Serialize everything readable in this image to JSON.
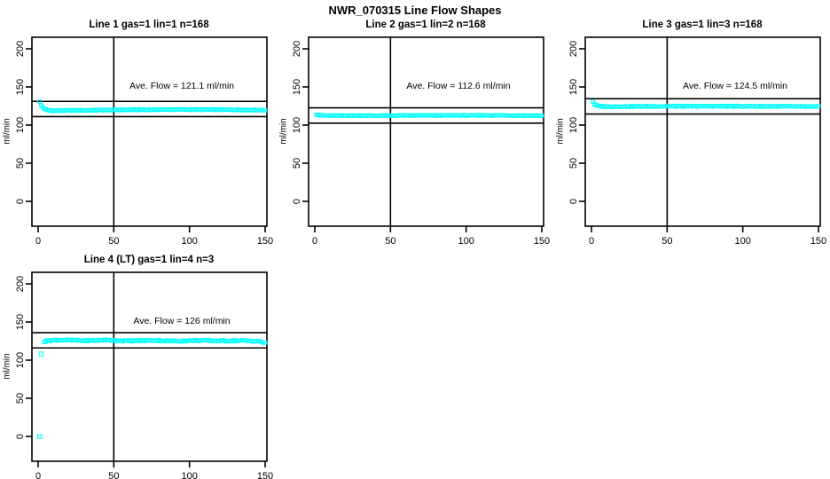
{
  "title": "NWR_070315  Line Flow Shapes",
  "colors": {
    "background": "#FFFFFF",
    "foreground": "#000000",
    "marker": "#00FFFF"
  },
  "chart_data": [
    {
      "type": "scatter",
      "title": "Line 1 gas=1 lin=1 n=168",
      "ylabel": "ml/min",
      "xlabel": "",
      "annotation": "Ave. Flow =  121.1   ml/min",
      "ave_flow_ml_min": 121.1,
      "n": 168,
      "gas": 1,
      "lin": 1,
      "xlim": [
        0,
        150
      ],
      "ylim": [
        0,
        200
      ],
      "x_ticks": [
        0,
        50,
        100,
        150
      ],
      "y_ticks": [
        0,
        50,
        100,
        150,
        200
      ],
      "vline_x": 50,
      "hlines": [
        131.1,
        111.1
      ],
      "marker": "open-square",
      "series": {
        "x_start": 1,
        "x_end": 150,
        "x_step": 1,
        "noise": 0.55,
        "profile": [
          [
            1,
            130.5
          ],
          [
            2,
            126.0
          ],
          [
            3,
            123.5
          ],
          [
            4,
            121.5
          ],
          [
            6,
            119.5
          ],
          [
            10,
            118.8
          ],
          [
            20,
            119.2
          ],
          [
            50,
            119.8
          ],
          [
            90,
            120.4
          ],
          [
            120,
            120.2
          ],
          [
            150,
            119.6
          ]
        ]
      },
      "outliers": []
    },
    {
      "type": "scatter",
      "title": "Line 2 gas=1 lin=2 n=168",
      "ylabel": "ml/min",
      "xlabel": "",
      "annotation": "Ave. Flow =  112.6  ml/min",
      "ave_flow_ml_min": 112.6,
      "n": 168,
      "gas": 1,
      "lin": 2,
      "xlim": [
        0,
        150
      ],
      "ylim": [
        0,
        200
      ],
      "x_ticks": [
        0,
        50,
        100,
        150
      ],
      "y_ticks": [
        0,
        50,
        100,
        150,
        200
      ],
      "vline_x": 50,
      "hlines": [
        122.6,
        102.6
      ],
      "marker": "open-square",
      "series": {
        "x_start": 1,
        "x_end": 150,
        "x_step": 1,
        "noise": 0.45,
        "profile": [
          [
            1,
            113.8
          ],
          [
            3,
            112.9
          ],
          [
            8,
            112.4
          ],
          [
            40,
            112.4
          ],
          [
            80,
            112.6
          ],
          [
            120,
            112.7
          ],
          [
            150,
            112.4
          ]
        ]
      },
      "outliers": []
    },
    {
      "type": "scatter",
      "title": "Line 3 gas=1 lin=3 n=168",
      "ylabel": "ml/min",
      "xlabel": "",
      "annotation": "Ave. Flow =  124.5  ml/min",
      "ave_flow_ml_min": 124.5,
      "n": 168,
      "gas": 1,
      "lin": 3,
      "xlim": [
        0,
        150
      ],
      "ylim": [
        0,
        200
      ],
      "x_ticks": [
        0,
        50,
        100,
        150
      ],
      "y_ticks": [
        0,
        50,
        100,
        150,
        200
      ],
      "vline_x": 50,
      "hlines": [
        134.5,
        114.5
      ],
      "marker": "open-square",
      "series": {
        "x_start": 1,
        "x_end": 150,
        "x_step": 1,
        "noise": 0.6,
        "profile": [
          [
            1,
            130.8
          ],
          [
            2,
            127.5
          ],
          [
            3,
            125.8
          ],
          [
            5,
            124.8
          ],
          [
            10,
            124.3
          ],
          [
            40,
            124.6
          ],
          [
            80,
            124.8
          ],
          [
            120,
            124.6
          ],
          [
            150,
            124.1
          ]
        ]
      },
      "outliers": []
    },
    {
      "type": "scatter",
      "title": "Line 4 (LT) gas=1 lin=4 n=3",
      "ylabel": "ml/min",
      "xlabel": "",
      "annotation": "Ave. Flow =  126  ml/min",
      "ave_flow_ml_min": 126,
      "n": 3,
      "gas": 1,
      "lin": 4,
      "xlim": [
        0,
        150
      ],
      "ylim": [
        0,
        200
      ],
      "x_ticks": [
        0,
        50,
        100,
        150
      ],
      "y_ticks": [
        0,
        50,
        100,
        150,
        200
      ],
      "vline_x": 50,
      "hlines": [
        136,
        116
      ],
      "marker": "open-square",
      "series": {
        "x_start": 4,
        "x_end": 150,
        "x_step": 1,
        "noise": 0.9,
        "profile": [
          [
            4,
            124.5
          ],
          [
            8,
            126.0
          ],
          [
            15,
            126.5
          ],
          [
            30,
            125.5
          ],
          [
            45,
            126.3
          ],
          [
            60,
            125.2
          ],
          [
            75,
            126.0
          ],
          [
            90,
            125.0
          ],
          [
            105,
            125.8
          ],
          [
            120,
            125.3
          ],
          [
            135,
            125.6
          ],
          [
            145,
            124.8
          ],
          [
            150,
            122.8
          ]
        ]
      },
      "outliers": [
        [
          1,
          0
        ],
        [
          2,
          108
        ]
      ]
    }
  ]
}
